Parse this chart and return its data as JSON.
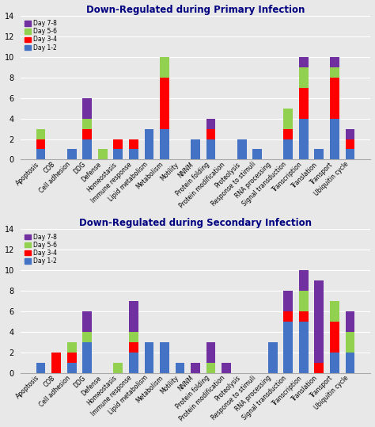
{
  "categories": [
    "Apoptosis",
    "COB",
    "Cell adhesion",
    "DDG",
    "Defense",
    "Homeostasis",
    "Immune response",
    "Lipid metabolism",
    "Metabolism",
    "Motility",
    "NNNM",
    "Protein folding",
    "Protein modification",
    "Proteolysis",
    "Response to stimuli",
    "RNA processing",
    "Signal transduction",
    "Transcription",
    "Translation",
    "Transport",
    "Ubiquitin cycle"
  ],
  "primary": {
    "day12": [
      1,
      0,
      1,
      2,
      0,
      1,
      1,
      3,
      3,
      0,
      2,
      2,
      0,
      2,
      1,
      0,
      2,
      4,
      1,
      4,
      1
    ],
    "day34": [
      1,
      0,
      0,
      1,
      0,
      1,
      1,
      0,
      5,
      0,
      0,
      1,
      0,
      0,
      0,
      0,
      1,
      3,
      0,
      4,
      1
    ],
    "day56": [
      1,
      0,
      0,
      1,
      1,
      0,
      0,
      0,
      2,
      0,
      0,
      0,
      0,
      0,
      0,
      0,
      2,
      2,
      0,
      1,
      0
    ],
    "day78": [
      0,
      0,
      0,
      2,
      0,
      0,
      0,
      0,
      0,
      0,
      0,
      1,
      0,
      0,
      0,
      0,
      0,
      1,
      0,
      1,
      1
    ]
  },
  "secondary": {
    "day12": [
      1,
      0,
      1,
      3,
      0,
      0,
      2,
      3,
      3,
      1,
      0,
      0,
      0,
      0,
      0,
      3,
      5,
      5,
      0,
      2,
      2
    ],
    "day34": [
      0,
      2,
      1,
      0,
      0,
      0,
      1,
      0,
      0,
      0,
      0,
      0,
      0,
      0,
      0,
      0,
      1,
      1,
      1,
      3,
      0
    ],
    "day56": [
      0,
      0,
      1,
      1,
      0,
      1,
      1,
      0,
      0,
      0,
      0,
      1,
      0,
      0,
      0,
      0,
      0,
      2,
      0,
      2,
      2
    ],
    "day78": [
      0,
      0,
      0,
      2,
      0,
      0,
      3,
      0,
      0,
      0,
      1,
      2,
      1,
      0,
      0,
      0,
      2,
      2,
      8,
      0,
      2
    ]
  },
  "colors": {
    "day12": "#4472c4",
    "day34": "#ff0000",
    "day56": "#92d050",
    "day78": "#7030a0"
  },
  "title_primary": "Down-Regulated during Primary Infection",
  "title_secondary": "Down-Regulated during Secondary Infection",
  "ylim": [
    0,
    14
  ],
  "yticks": [
    0,
    2,
    4,
    6,
    8,
    10,
    12,
    14
  ],
  "bg_color": "#f0f0f0"
}
